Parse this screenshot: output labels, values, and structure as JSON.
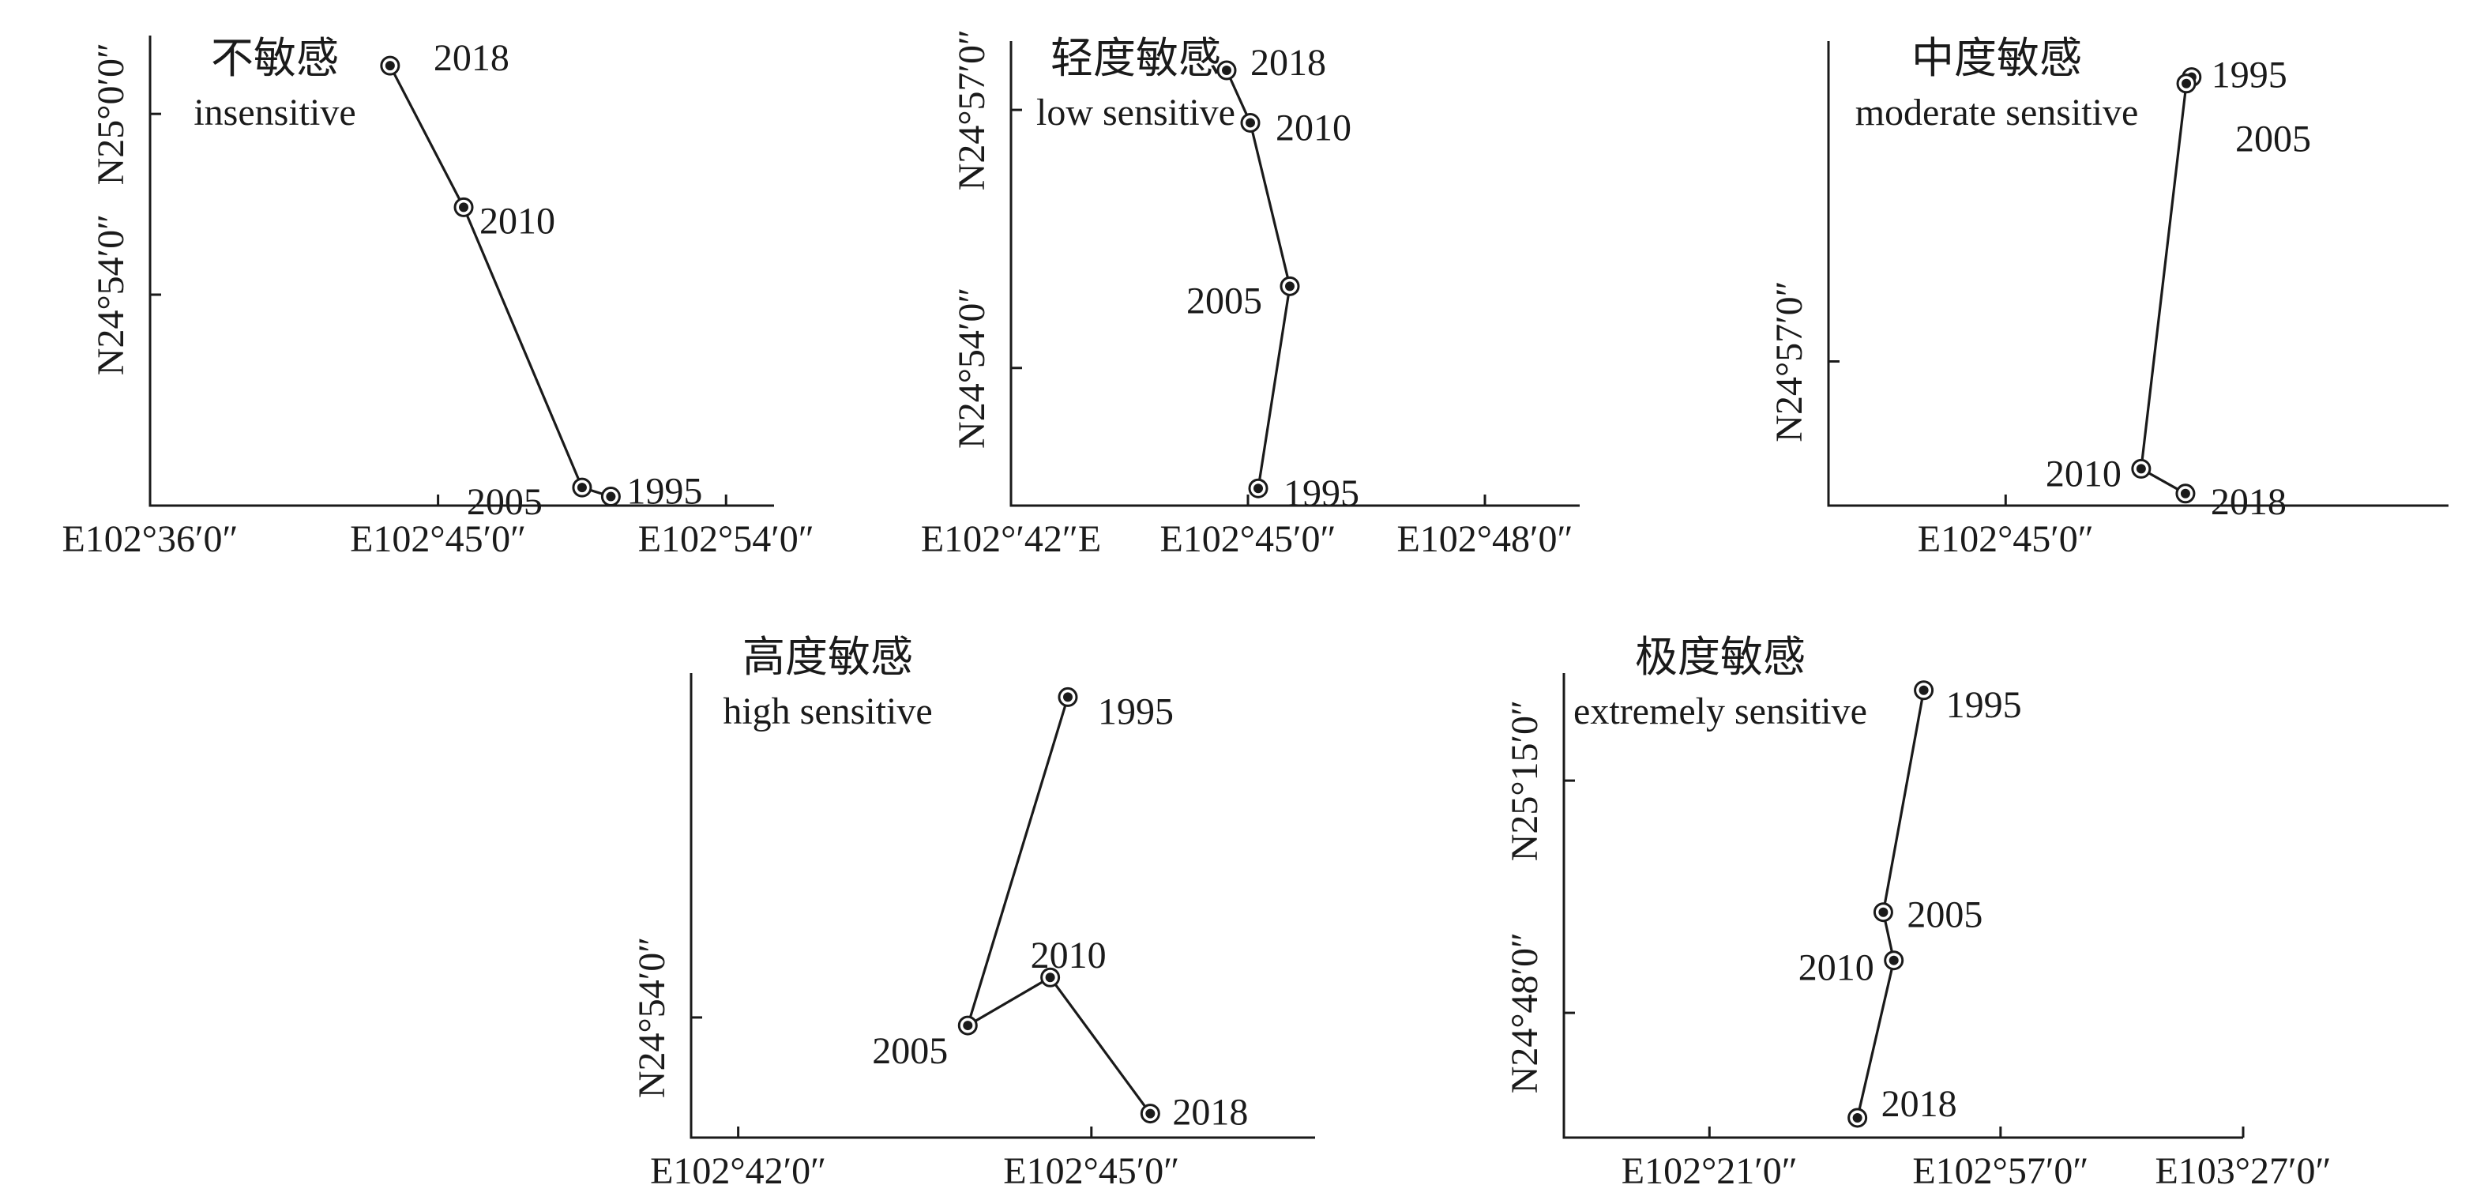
{
  "chart_data": [
    {
      "type": "line",
      "title": "不敏感",
      "subtitle": "insensitive",
      "x_ticks": [
        {
          "label": "E102°36′0″",
          "value": 0
        },
        {
          "label": "E102°45′0″",
          "value": 9
        },
        {
          "label": "E102°54′0″",
          "value": 18
        }
      ],
      "y_ticks": [
        {
          "label": "N24°54′0″",
          "value": 0
        },
        {
          "label": "N25°0′0″",
          "value": 6
        }
      ],
      "xlim": [
        0,
        19.5
      ],
      "ylim": [
        -7,
        8.6
      ],
      "points": [
        {
          "year": "2018",
          "x": 7.5,
          "y": 7.6
        },
        {
          "year": "2010",
          "x": 9.8,
          "y": 2.9
        },
        {
          "year": "2005",
          "x": 13.5,
          "y": -6.4
        },
        {
          "year": "1995",
          "x": 14.4,
          "y": -6.7
        }
      ]
    },
    {
      "type": "line",
      "title": "轻度敏感",
      "subtitle": "low sensitive",
      "x_ticks": [
        {
          "label": "E102°′42″E",
          "value": 0
        },
        {
          "label": "E102°45′0″",
          "value": 3
        },
        {
          "label": "E102°48′0″",
          "value": 6
        }
      ],
      "y_ticks": [
        {
          "label": "N24°54′0″",
          "value": 0
        },
        {
          "label": "N24°57′0″",
          "value": 3
        }
      ],
      "xlim": [
        0,
        7.2
      ],
      "ylim": [
        -1.6,
        3.8
      ],
      "points": [
        {
          "year": "2018",
          "x": 2.73,
          "y": 3.46
        },
        {
          "year": "2010",
          "x": 3.03,
          "y": 2.85
        },
        {
          "year": "2005",
          "x": 3.53,
          "y": 0.95
        },
        {
          "year": "1995",
          "x": 3.13,
          "y": -1.4
        }
      ]
    },
    {
      "type": "line",
      "title": "中度敏感",
      "subtitle": "moderate sensitive",
      "x_ticks": [
        {
          "label": "E102°45′0″",
          "value": 0
        }
      ],
      "y_ticks": [
        {
          "label": "N24°57′0″",
          "value": 0
        }
      ],
      "xlim": [
        -2.0,
        5.0
      ],
      "ylim": [
        -1.8,
        4.0
      ],
      "points": [
        {
          "year": "1995",
          "x": 2.1,
          "y": 3.55
        },
        {
          "year": "2005",
          "x": 2.04,
          "y": 3.47
        },
        {
          "year": "2010",
          "x": 1.53,
          "y": -1.34
        },
        {
          "year": "2018",
          "x": 2.03,
          "y": -1.65
        }
      ]
    },
    {
      "type": "line",
      "title": "高度敏感",
      "subtitle": "high sensitive",
      "x_ticks": [
        {
          "label": "E102°42′0″",
          "value": 0
        },
        {
          "label": "E102°45′0″",
          "value": 3
        }
      ],
      "y_ticks": [
        {
          "label": "N24°54′0″",
          "value": 0
        }
      ],
      "xlim": [
        -0.4,
        4.9
      ],
      "ylim": [
        -1.5,
        4.3
      ],
      "points": [
        {
          "year": "1995",
          "x": 2.8,
          "y": 4.0
        },
        {
          "year": "2005",
          "x": 1.95,
          "y": -0.1
        },
        {
          "year": "2010",
          "x": 2.65,
          "y": 0.5
        },
        {
          "year": "2018",
          "x": 3.5,
          "y": -1.2
        }
      ]
    },
    {
      "type": "line",
      "title": "极度敏感",
      "subtitle": "extremely sensitive",
      "x_ticks": [
        {
          "label": "E102°21′0″",
          "value": 0
        },
        {
          "label": "E102°57′0″",
          "value": 36
        },
        {
          "label": "E103°27′0″",
          "value": 66
        }
      ],
      "y_ticks": [
        {
          "label": "N24°48′0″",
          "value": 0
        },
        {
          "label": "N25°15′0″",
          "value": 27
        }
      ],
      "xlim": [
        -18,
        66
      ],
      "ylim": [
        -14.5,
        39.5
      ],
      "points": [
        {
          "year": "1995",
          "x": 26.5,
          "y": 37.5
        },
        {
          "year": "2005",
          "x": 21.5,
          "y": 11.7
        },
        {
          "year": "2010",
          "x": 22.8,
          "y": 6.1
        },
        {
          "year": "2018",
          "x": 18.3,
          "y": -12.2
        }
      ]
    }
  ]
}
